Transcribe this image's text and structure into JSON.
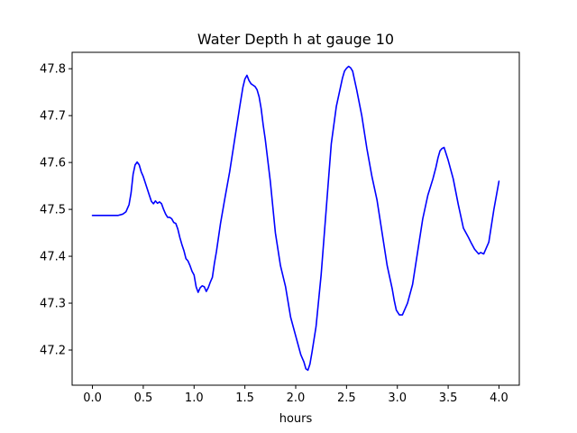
{
  "chart_data": {
    "type": "line",
    "title": "Water Depth h at gauge 10",
    "xlabel": "hours",
    "ylabel": "",
    "xlim": [
      -0.2,
      4.2
    ],
    "ylim": [
      47.125,
      47.835
    ],
    "xticks": [
      0.0,
      0.5,
      1.0,
      1.5,
      2.0,
      2.5,
      3.0,
      3.5,
      4.0
    ],
    "xtick_labels": [
      "0.0",
      "0.5",
      "1.0",
      "1.5",
      "2.0",
      "2.5",
      "3.0",
      "3.5",
      "4.0"
    ],
    "yticks": [
      47.2,
      47.3,
      47.4,
      47.5,
      47.6,
      47.7,
      47.8
    ],
    "ytick_labels": [
      "47.2",
      "47.3",
      "47.4",
      "47.5",
      "47.6",
      "47.7",
      "47.8"
    ],
    "grid": false,
    "legend": "none",
    "series": [
      {
        "color": "#0000ff",
        "x": [
          0.0,
          0.1,
          0.2,
          0.25,
          0.3,
          0.33,
          0.36,
          0.38,
          0.4,
          0.42,
          0.44,
          0.46,
          0.48,
          0.5,
          0.53,
          0.56,
          0.58,
          0.6,
          0.62,
          0.64,
          0.66,
          0.68,
          0.7,
          0.72,
          0.74,
          0.76,
          0.78,
          0.8,
          0.82,
          0.84,
          0.86,
          0.88,
          0.9,
          0.92,
          0.94,
          0.96,
          0.98,
          1.0,
          1.02,
          1.04,
          1.06,
          1.08,
          1.1,
          1.12,
          1.14,
          1.16,
          1.18,
          1.2,
          1.22,
          1.24,
          1.26,
          1.3,
          1.35,
          1.4,
          1.45,
          1.48,
          1.5,
          1.52,
          1.54,
          1.56,
          1.58,
          1.6,
          1.62,
          1.64,
          1.66,
          1.68,
          1.7,
          1.75,
          1.8,
          1.85,
          1.9,
          1.95,
          2.0,
          2.05,
          2.08,
          2.1,
          2.12,
          2.14,
          2.16,
          2.2,
          2.25,
          2.3,
          2.35,
          2.4,
          2.44,
          2.46,
          2.48,
          2.5,
          2.52,
          2.54,
          2.56,
          2.58,
          2.6,
          2.65,
          2.7,
          2.75,
          2.8,
          2.85,
          2.9,
          2.95,
          2.97,
          2.99,
          3.02,
          3.05,
          3.1,
          3.15,
          3.2,
          3.25,
          3.3,
          3.35,
          3.38,
          3.4,
          3.42,
          3.44,
          3.46,
          3.5,
          3.55,
          3.6,
          3.65,
          3.7,
          3.73,
          3.76,
          3.78,
          3.8,
          3.82,
          3.85,
          3.9,
          3.95,
          4.0
        ],
        "y": [
          47.487,
          47.487,
          47.487,
          47.487,
          47.49,
          47.495,
          47.51,
          47.535,
          47.575,
          47.595,
          47.601,
          47.595,
          47.58,
          47.57,
          47.55,
          47.53,
          47.517,
          47.512,
          47.518,
          47.513,
          47.516,
          47.512,
          47.5,
          47.49,
          47.483,
          47.483,
          47.48,
          47.472,
          47.47,
          47.458,
          47.44,
          47.425,
          47.412,
          47.395,
          47.39,
          47.38,
          47.368,
          47.36,
          47.335,
          47.323,
          47.333,
          47.337,
          47.335,
          47.325,
          47.333,
          47.345,
          47.355,
          47.385,
          47.41,
          47.44,
          47.47,
          47.52,
          47.58,
          47.65,
          47.72,
          47.76,
          47.778,
          47.786,
          47.775,
          47.768,
          47.765,
          47.762,
          47.755,
          47.74,
          47.715,
          47.68,
          47.65,
          47.56,
          47.45,
          47.38,
          47.335,
          47.27,
          47.23,
          47.19,
          47.175,
          47.16,
          47.157,
          47.17,
          47.195,
          47.25,
          47.36,
          47.5,
          47.64,
          47.72,
          47.76,
          47.78,
          47.795,
          47.801,
          47.805,
          47.802,
          47.795,
          47.775,
          47.755,
          47.7,
          47.63,
          47.57,
          47.52,
          47.45,
          47.38,
          47.33,
          47.305,
          47.285,
          47.275,
          47.275,
          47.3,
          47.34,
          47.41,
          47.48,
          47.53,
          47.565,
          47.59,
          47.61,
          47.625,
          47.63,
          47.632,
          47.605,
          47.565,
          47.51,
          47.46,
          47.44,
          47.427,
          47.415,
          47.41,
          47.405,
          47.408,
          47.405,
          47.43,
          47.5,
          47.56
        ]
      }
    ]
  }
}
